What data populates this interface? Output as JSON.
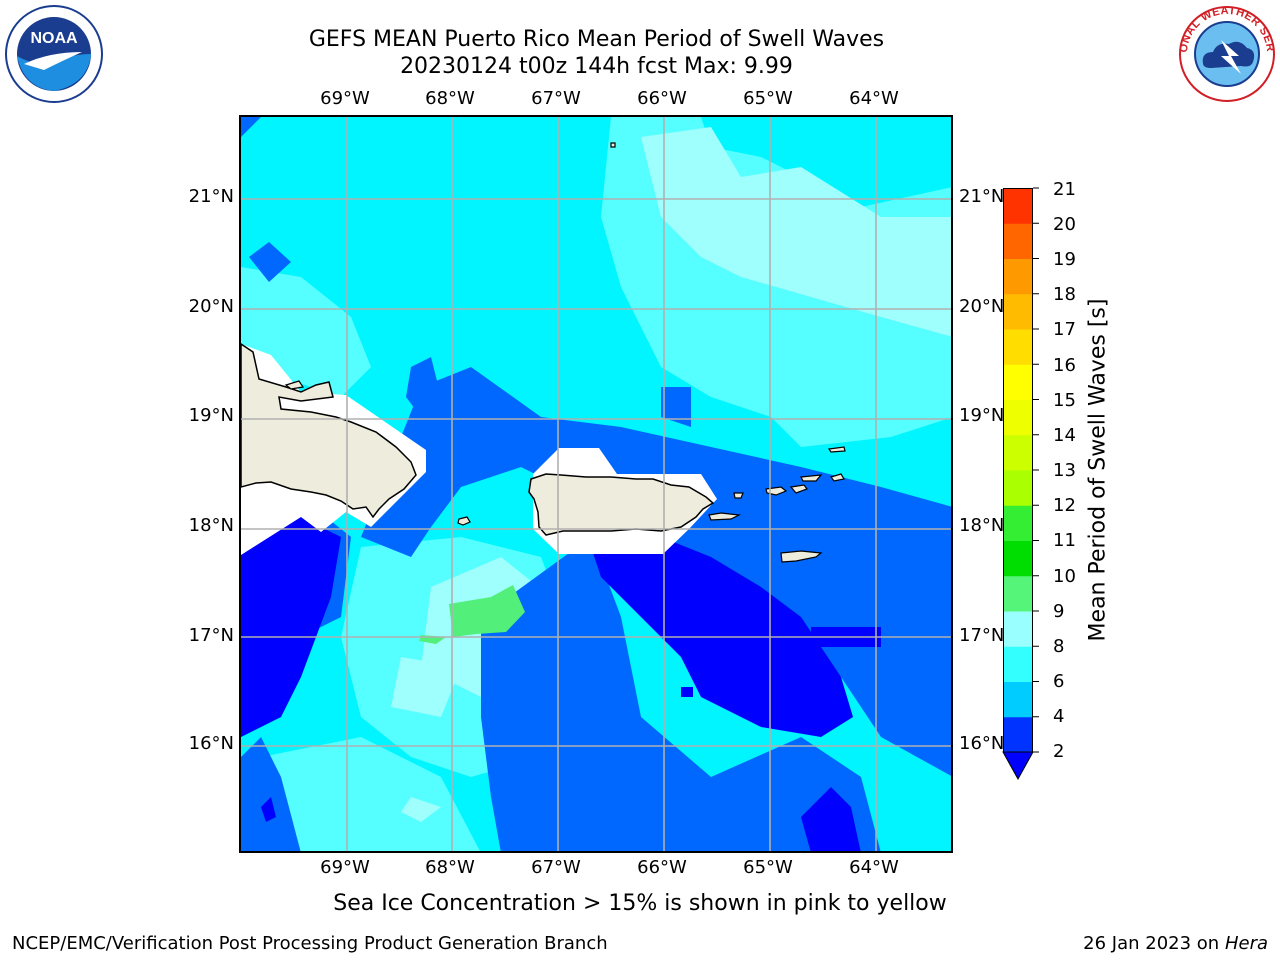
{
  "title": {
    "line1": "GEFS MEAN Puerto Rico Mean Period of Swell Waves",
    "line2": "20230124 t00z 144h fcst   Max: 9.99"
  },
  "logos": {
    "left": "noaa-logo",
    "right": "nws-logo",
    "nws_text": "NATIONAL WEATHER SERVICE",
    "noaa_text": "NOAA"
  },
  "map": {
    "region": "Puerto Rico",
    "lon_ticks": [
      "69°W",
      "68°W",
      "67°W",
      "66°W",
      "65°W",
      "64°W"
    ],
    "lat_ticks": [
      "21°N",
      "20°N",
      "19°N",
      "18°N",
      "17°N",
      "16°N"
    ],
    "gridlines": true,
    "land_color": "#eeecdc",
    "mask_color": "#ffffff"
  },
  "colorbar": {
    "label": "Mean Period of Swell Waves [s]",
    "ticks": [
      "21",
      "20",
      "19",
      "18",
      "17",
      "16",
      "15",
      "14",
      "13",
      "12",
      "11",
      "10",
      "9",
      "8",
      "6",
      "4",
      "2"
    ],
    "levels": [
      2,
      4,
      6,
      8,
      9,
      10,
      11,
      12,
      13,
      14,
      15,
      16,
      17,
      18,
      19,
      20,
      21
    ],
    "colors": [
      "#0033ff",
      "#00ccff",
      "#33ffff",
      "#99ffff",
      "#55f57a",
      "#00dd00",
      "#33ee33",
      "#aaff00",
      "#ccff00",
      "#eeff00",
      "#ffff00",
      "#ffdd00",
      "#ffbb00",
      "#ff9900",
      "#ff6600",
      "#ff3300",
      "#ff0000"
    ],
    "under_color": "#0000ff"
  },
  "footnote": "Sea Ice Concentration > 15% is shown in pink to yellow",
  "footer": {
    "left": "NCEP/EMC/Verification Post Processing Product Generation Branch",
    "right_date": "26 Jan 2023 on ",
    "right_host": "Hera"
  }
}
